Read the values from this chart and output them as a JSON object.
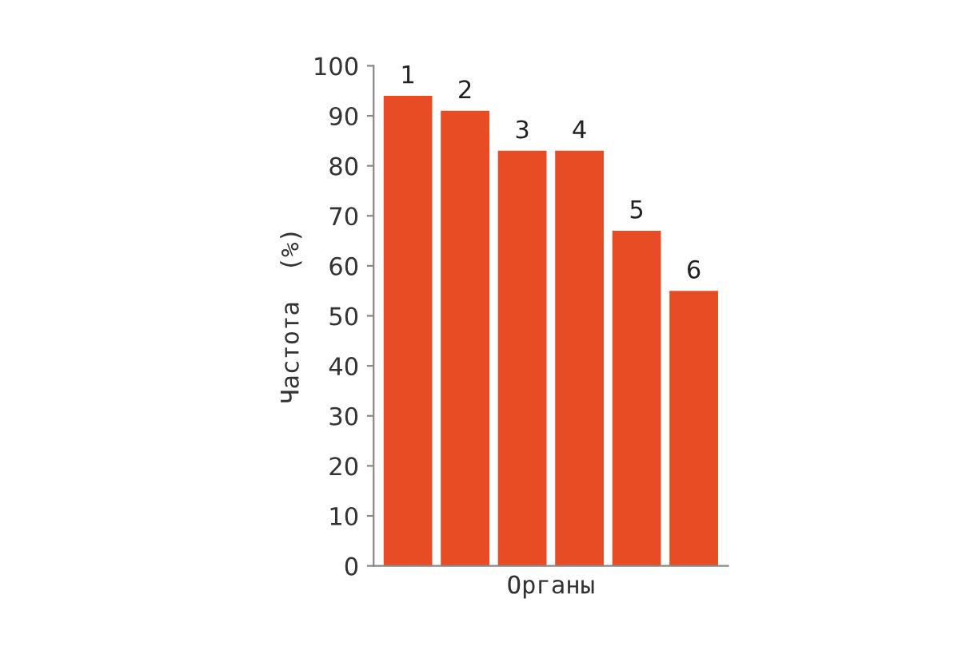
{
  "chart_data": {
    "type": "bar",
    "categories": [
      "1",
      "2",
      "3",
      "4",
      "5",
      "6"
    ],
    "values": [
      94,
      91,
      83,
      83,
      67,
      55
    ],
    "color": "#e84c24",
    "xlabel": "Органы",
    "ylabel": "Частота  (%)",
    "ylim": [
      0,
      100
    ],
    "yticks": [
      0,
      10,
      20,
      30,
      40,
      50,
      60,
      70,
      80,
      90,
      100
    ],
    "grid": false
  }
}
